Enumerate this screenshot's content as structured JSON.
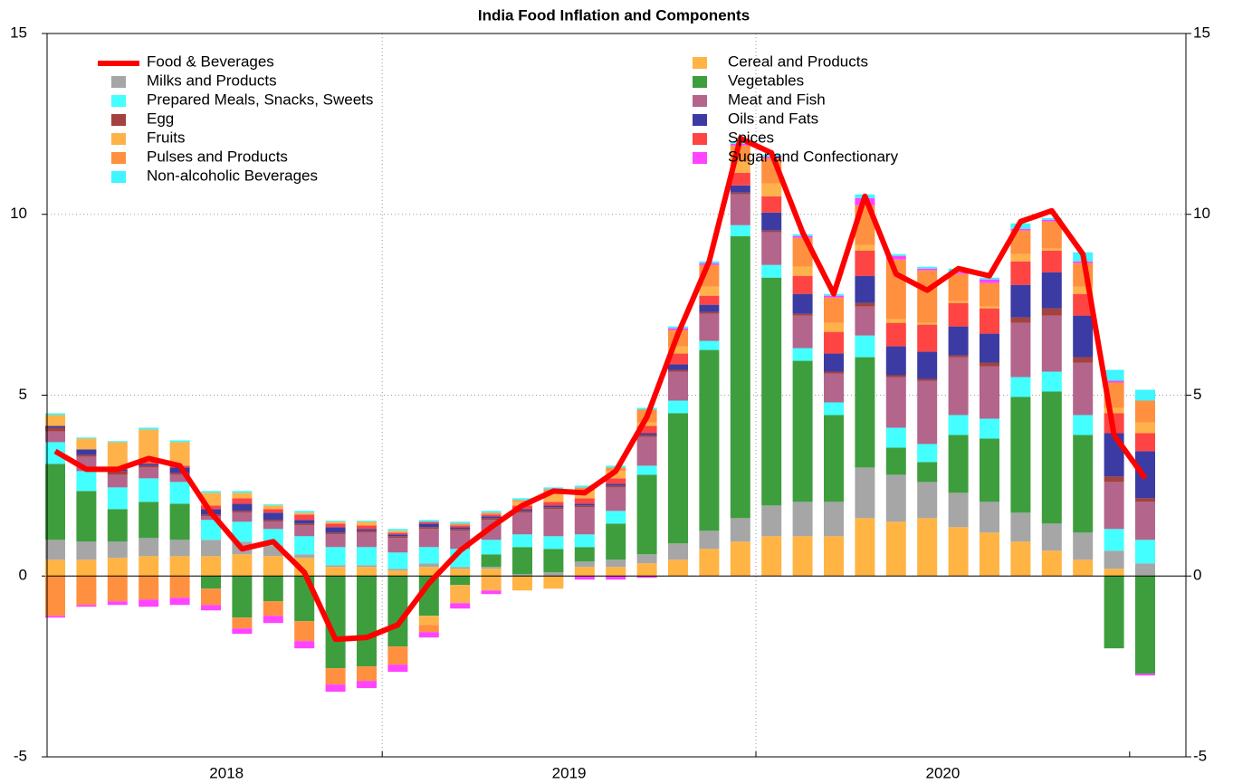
{
  "chart_data": {
    "type": "bar",
    "title": "India Food Inflation and Components",
    "categories": [
      null,
      null,
      null,
      null,
      null,
      "2018",
      null,
      null,
      null,
      null,
      null,
      null,
      null,
      null,
      null,
      null,
      "2019",
      null,
      null,
      null,
      null,
      null,
      null,
      null,
      null,
      null,
      null,
      null,
      "2020",
      null,
      null,
      null,
      null,
      null,
      null,
      null
    ],
    "ylim": [
      -5,
      15
    ],
    "yticks": [
      -5,
      0,
      5,
      10,
      15
    ],
    "y2lim": [
      -5,
      15
    ],
    "y2ticks": [
      -5,
      0,
      5,
      10,
      15
    ],
    "grid": true,
    "stacked": true,
    "legend": "top-left",
    "series": [
      {
        "name": "Food & Beverages",
        "type": "line",
        "color": "#ff0000",
        "values": [
          3.45,
          2.95,
          2.95,
          3.25,
          3.05,
          1.75,
          0.75,
          0.95,
          0.1,
          -1.75,
          -1.7,
          -1.35,
          -0.2,
          0.7,
          1.35,
          1.95,
          2.35,
          2.3,
          2.9,
          4.4,
          6.7,
          8.7,
          12.1,
          11.7,
          9.5,
          7.8,
          10.5,
          8.35,
          7.9,
          8.5,
          8.3,
          9.8,
          10.1,
          8.9,
          3.9,
          2.7
        ]
      },
      {
        "name": "Milks and Products",
        "color": "#a6a6a6",
        "values": [
          0.55,
          0.5,
          0.45,
          0.5,
          0.45,
          0.45,
          0.35,
          0.3,
          0.1,
          0.05,
          0.05,
          0.05,
          0.1,
          0.05,
          0.05,
          0.05,
          0.1,
          0.15,
          0.2,
          0.25,
          0.45,
          0.5,
          0.65,
          0.85,
          0.95,
          0.95,
          1.4,
          1.3,
          1.0,
          0.95,
          0.85,
          0.8,
          0.75,
          0.75,
          0.5,
          0.35
        ]
      },
      {
        "name": "Prepared Meals, Snacks, Sweets",
        "color": "#44ffff",
        "values": [
          0.6,
          0.55,
          0.6,
          0.65,
          0.6,
          0.55,
          0.55,
          0.45,
          0.5,
          0.5,
          0.5,
          0.45,
          0.45,
          0.5,
          0.4,
          0.35,
          0.35,
          0.35,
          0.35,
          0.25,
          0.35,
          0.25,
          0.3,
          0.35,
          0.35,
          0.35,
          0.6,
          0.55,
          0.5,
          0.55,
          0.55,
          0.55,
          0.55,
          0.55,
          0.6,
          0.65
        ]
      },
      {
        "name": "Egg",
        "color": "#a3423e",
        "values": [
          0.1,
          0.05,
          0.1,
          0.05,
          0.05,
          0.05,
          0.05,
          0.05,
          0.05,
          0.05,
          0.05,
          0.05,
          0.05,
          0.05,
          0.05,
          0.05,
          0.05,
          0.05,
          0.05,
          0.05,
          0.05,
          0.05,
          0.05,
          0.05,
          0.05,
          0.05,
          0.1,
          0.05,
          0.05,
          0.05,
          0.1,
          0.15,
          0.2,
          0.15,
          0.15,
          0.1
        ]
      },
      {
        "name": "Fruits",
        "color": "#ffb24a",
        "values": [
          0.3,
          0.3,
          0.75,
          0.9,
          0.65,
          0.35,
          0.15,
          0.1,
          0.05,
          0.05,
          0.1,
          0.05,
          -0.25,
          -0.5,
          -0.4,
          0.1,
          0.25,
          0.2,
          0.2,
          0.1,
          0.2,
          0.25,
          0.3,
          0.35,
          0.25,
          0.25,
          0.15,
          0.1,
          0.05,
          0.05,
          0.05,
          0.2,
          0.05,
          0.2,
          0.15,
          0.3
        ]
      },
      {
        "name": "Pulses and Products",
        "color": "#ff9040",
        "values": [
          -1.1,
          -0.8,
          -0.7,
          -0.65,
          -0.6,
          -0.45,
          -0.3,
          -0.4,
          -0.55,
          -0.45,
          -0.4,
          -0.5,
          -0.2,
          0.05,
          0.05,
          0.05,
          0.1,
          0.1,
          0.1,
          0.35,
          0.45,
          0.6,
          0.45,
          0.7,
          0.8,
          0.7,
          1.1,
          1.65,
          1.45,
          0.75,
          0.65,
          0.65,
          0.75,
          0.65,
          0.7,
          0.6
        ]
      },
      {
        "name": "Non-alcoholic Beverages",
        "color": "#3ff5ff",
        "values": [
          0.05,
          0.03,
          0.03,
          0.05,
          0.05,
          0.05,
          0.05,
          0.03,
          0.05,
          0.03,
          0.03,
          0.05,
          0.05,
          0.05,
          0.05,
          0.05,
          0.05,
          0.05,
          0.05,
          0.05,
          0.05,
          0.05,
          0.05,
          0.05,
          0.05,
          0.05,
          0.1,
          0.05,
          0.05,
          0.1,
          0.05,
          0.15,
          0.05,
          0.25,
          0.3,
          0.3
        ]
      },
      {
        "name": "Cereal and Products",
        "color": "#ffb444",
        "values": [
          0.45,
          0.45,
          0.5,
          0.55,
          0.55,
          0.55,
          0.6,
          0.55,
          0.5,
          0.25,
          0.25,
          0.15,
          0.25,
          0.2,
          0.2,
          -0.4,
          -0.35,
          0.25,
          0.25,
          0.35,
          0.45,
          0.75,
          0.95,
          1.1,
          1.1,
          1.1,
          1.6,
          1.5,
          1.6,
          1.35,
          1.2,
          0.95,
          0.7,
          0.45,
          0.2,
          0
        ]
      },
      {
        "name": "Vegetables",
        "color": "#3e9e3e",
        "values": [
          2.1,
          1.4,
          0.9,
          1.0,
          1.0,
          -0.35,
          -1.15,
          -0.7,
          -1.25,
          -2.55,
          -2.5,
          -1.95,
          -1.1,
          -0.25,
          0.35,
          0.75,
          0.65,
          0.4,
          1.0,
          2.2,
          3.6,
          5.0,
          7.8,
          6.3,
          3.9,
          2.4,
          3.05,
          0.75,
          0.55,
          1.6,
          1.75,
          3.2,
          3.65,
          2.7,
          -2.0,
          -2.7
        ]
      },
      {
        "name": "Meat and Fish",
        "color": "#b3658b",
        "values": [
          0.3,
          0.4,
          0.35,
          0.3,
          0.2,
          0.1,
          0.25,
          0.2,
          0.3,
          0.35,
          0.4,
          0.4,
          0.5,
          0.5,
          0.55,
          0.6,
          0.75,
          0.75,
          0.65,
          0.8,
          0.8,
          0.75,
          0.85,
          0.9,
          0.9,
          0.8,
          0.8,
          1.4,
          1.75,
          1.6,
          1.45,
          1.5,
          1.55,
          1.45,
          1.3,
          1.05
        ]
      },
      {
        "name": "Oils and Fats",
        "color": "#3b3ba3",
        "values": [
          0.05,
          0.15,
          0.05,
          0.05,
          0.15,
          0.15,
          0.2,
          0.2,
          0.1,
          0.15,
          0.05,
          0.05,
          0.1,
          0.05,
          0.05,
          0.05,
          0.05,
          0.05,
          0.05,
          0.05,
          0.15,
          0.2,
          0.2,
          0.5,
          0.55,
          0.5,
          0.75,
          0.8,
          0.75,
          0.8,
          0.8,
          0.9,
          1.0,
          1.15,
          1.2,
          1.3
        ]
      },
      {
        "name": "Spices",
        "color": "#ff4444",
        "values": [
          0,
          0,
          0,
          0.05,
          0.05,
          0.1,
          0.15,
          0.1,
          0.15,
          0.1,
          0.1,
          0.05,
          0.05,
          0.05,
          0.05,
          0.1,
          0.1,
          0.15,
          0.15,
          0.2,
          0.3,
          0.25,
          0.35,
          0.45,
          0.5,
          0.6,
          0.7,
          0.65,
          0.75,
          0.65,
          0.7,
          0.65,
          0.6,
          0.6,
          0.55,
          0.5
        ]
      },
      {
        "name": "Sugar and Confectionary",
        "color": "#ff44ff",
        "values": [
          -0.05,
          -0.05,
          -0.1,
          -0.2,
          -0.2,
          -0.15,
          -0.15,
          -0.2,
          -0.2,
          -0.2,
          -0.2,
          -0.2,
          -0.15,
          -0.15,
          -0.1,
          0,
          0,
          -0.1,
          -0.1,
          -0.05,
          0.05,
          0.05,
          0.05,
          0.05,
          0.05,
          0.05,
          0.2,
          0.1,
          0.05,
          0.05,
          0.1,
          0.05,
          0.05,
          0.05,
          0.05,
          -0.05
        ]
      }
    ]
  }
}
